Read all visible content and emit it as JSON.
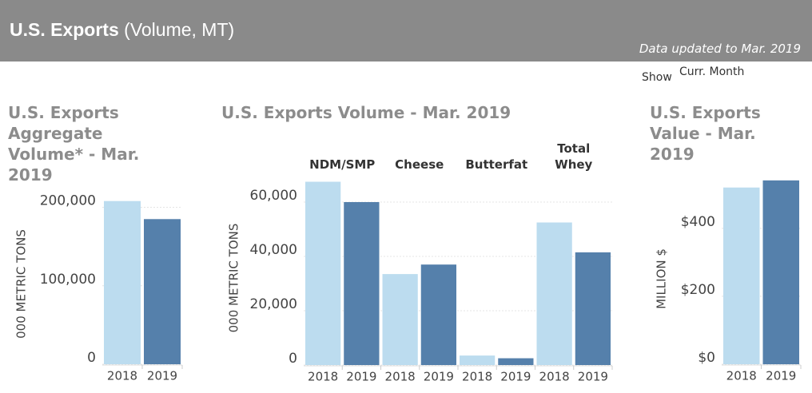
{
  "header": {
    "title": "U.S. Exports",
    "subtitle": "(Volume, MT)",
    "updated": "Data updated to Mar. 2019",
    "show_label": "Show",
    "show_value": "Curr. Month"
  },
  "chart_data": [
    {
      "type": "bar",
      "title": "U.S. Exports Aggregate Volume* - Mar. 2019",
      "y_label": "000 METRIC TONS",
      "categories": [
        "2018",
        "2019"
      ],
      "values": [
        208000,
        185000
      ],
      "colors": [
        "#bcdcef",
        "#5580ab"
      ],
      "ylim": [
        0,
        225000
      ],
      "yticks": [
        0,
        {
          "value": 100000,
          "label": "100,000"
        },
        {
          "value": 200000,
          "label": "200,000"
        }
      ],
      "grid": true
    },
    {
      "type": "grouped_bar",
      "title": "U.S. Exports Volume - Mar. 2019",
      "y_label": "000 METRIC TONS",
      "categories": [
        "NDM/SMP",
        "Cheese",
        "Butterfat",
        "Total Whey"
      ],
      "series": [
        {
          "name": "2018",
          "color": "#bcdcef",
          "values": [
            67500,
            33500,
            3500,
            52500
          ]
        },
        {
          "name": "2019",
          "color": "#5580ab",
          "values": [
            60000,
            37000,
            2500,
            41500
          ]
        }
      ],
      "ylim": [
        0,
        70000
      ],
      "yticks": [
        0,
        {
          "value": 20000,
          "label": "20,000"
        },
        {
          "value": 40000,
          "label": "40,000"
        },
        {
          "value": 60000,
          "label": "60,000"
        }
      ],
      "grid": true
    },
    {
      "type": "bar",
      "title": "U.S. Exports Value - Mar. 2019",
      "y_label": "MILLION $",
      "categories": [
        "2018",
        "2019"
      ],
      "values": [
        520,
        541
      ],
      "colors": [
        "#bcdcef",
        "#5580ab"
      ],
      "ylim": [
        0,
        550
      ],
      "yticks": [
        {
          "value": 0,
          "label": "$0"
        },
        {
          "value": 200,
          "label": "$200"
        },
        {
          "value": 400,
          "label": "$400"
        }
      ],
      "grid": true
    }
  ]
}
